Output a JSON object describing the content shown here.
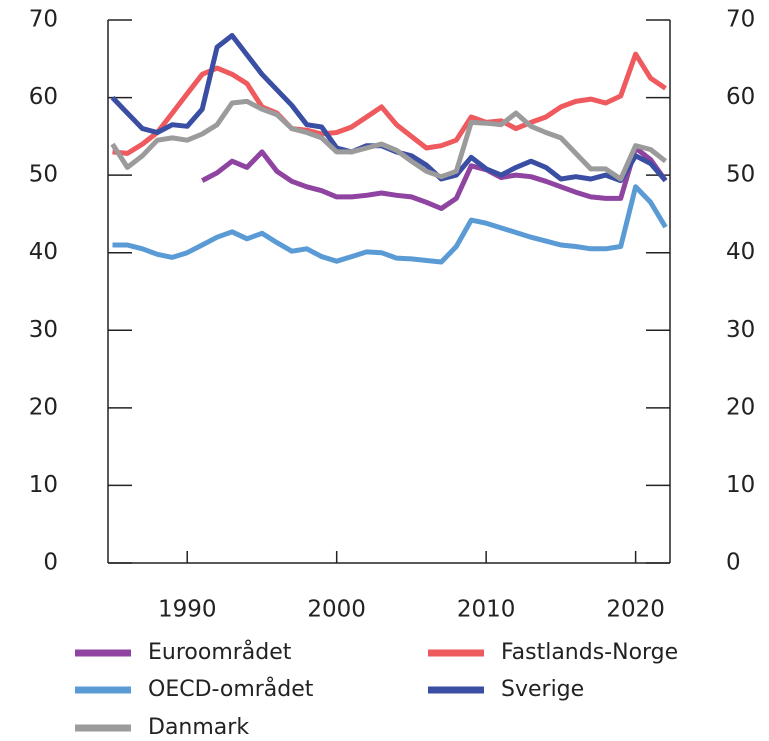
{
  "chart_data": {
    "type": "line",
    "x": [
      1985,
      1986,
      1987,
      1988,
      1989,
      1990,
      1991,
      1992,
      1993,
      1994,
      1995,
      1996,
      1997,
      1998,
      1999,
      2000,
      2001,
      2002,
      2003,
      2004,
      2005,
      2006,
      2007,
      2008,
      2009,
      2010,
      2011,
      2012,
      2013,
      2014,
      2015,
      2016,
      2017,
      2018,
      2019,
      2020,
      2021,
      2022
    ],
    "xlim": [
      1984.7,
      2022.3
    ],
    "xticks": [
      1990,
      2000,
      2010,
      2020
    ],
    "ylim": [
      0,
      70
    ],
    "yticks": [
      0,
      10,
      20,
      30,
      40,
      50,
      60,
      70
    ],
    "y2lim": [
      0,
      70
    ],
    "y2ticks": [
      0,
      10,
      20,
      30,
      40,
      50,
      60,
      70
    ],
    "legend": "bottom",
    "series": [
      {
        "name": "Euroområdet",
        "color": "#8e44a0",
        "values": [
          null,
          null,
          null,
          null,
          null,
          null,
          49.3,
          50.3,
          51.8,
          51,
          53,
          50.5,
          49.2,
          48.5,
          48,
          47.2,
          47.2,
          47.4,
          47.7,
          47.4,
          47.2,
          46.5,
          45.7,
          47,
          51.2,
          50.7,
          49.7,
          50,
          49.8,
          49.2,
          48.5,
          47.8,
          47.2,
          47,
          47,
          53.5,
          52,
          49.3
        ]
      },
      {
        "name": "Fastlands-Norge",
        "color": "#ee5a5e",
        "values": [
          53,
          52.8,
          54,
          55.5,
          58,
          60.5,
          63,
          63.8,
          63,
          61.8,
          58.8,
          58,
          56,
          55.8,
          55.3,
          55.5,
          56.2,
          57.5,
          58.8,
          56.5,
          55,
          53.5,
          53.8,
          54.5,
          57.5,
          56.8,
          57,
          56,
          56.8,
          57.5,
          58.8,
          59.5,
          59.8,
          59.3,
          60.2,
          65.6,
          62.5,
          61.2
        ]
      },
      {
        "name": "OECD-området",
        "color": "#5b9bd5",
        "values": [
          41,
          41,
          40.5,
          39.8,
          39.4,
          40,
          41,
          42,
          42.7,
          41.8,
          42.5,
          41.3,
          40.2,
          40.5,
          39.5,
          38.9,
          39.5,
          40.1,
          40,
          39.3,
          39.2,
          39,
          38.8,
          40.8,
          44.2,
          43.8,
          43.2,
          42.6,
          42,
          41.5,
          41,
          40.8,
          40.5,
          40.5,
          40.8,
          48.5,
          46.5,
          43.3
        ]
      },
      {
        "name": "Sverige",
        "color": "#3a4ea3",
        "values": [
          60,
          58,
          56,
          55.5,
          56.5,
          56.3,
          58.5,
          66.5,
          68,
          65.5,
          63,
          61,
          59,
          56.5,
          56.2,
          53.5,
          53,
          53.8,
          53.8,
          53,
          52.5,
          51.3,
          49.5,
          50,
          52.3,
          50.8,
          50,
          51,
          51.8,
          51,
          49.5,
          49.8,
          49.5,
          50,
          49.3,
          52.5,
          51.5,
          49.3
        ]
      },
      {
        "name": "Danmark",
        "color": "#9b9b9b",
        "values": [
          54,
          51,
          52.5,
          54.5,
          54.8,
          54.5,
          55.3,
          56.5,
          59.3,
          59.5,
          58.5,
          57.8,
          56,
          55.5,
          54.8,
          53,
          53,
          53.5,
          54,
          53.2,
          51.8,
          50.5,
          49.8,
          50.5,
          56.8,
          56.7,
          56.5,
          58,
          56.3,
          55.5,
          54.8,
          52.8,
          50.8,
          50.8,
          49.5,
          53.8,
          53.3,
          51.8
        ]
      }
    ]
  }
}
